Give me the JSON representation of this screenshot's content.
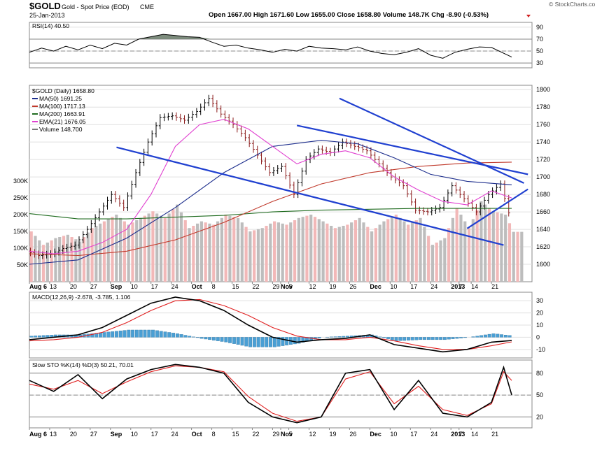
{
  "header": {
    "symbol": "$GOLD",
    "name": "Gold - Spot Price (EOD)",
    "exchange": "CME",
    "date": "25-Jan-2013",
    "quote": "Open 1667.00   High 1671.60   Low 1655.00   Close 1658.80   Volume 148.7K   Chg -8.90 (-0.53%)",
    "brand": "© StockCharts.com"
  },
  "colors": {
    "price": "#000000",
    "ma50": "#1c2d8c",
    "ma100": "#c0392b",
    "ma200": "#1f6b1f",
    "ema21": "#e040d0",
    "trendline": "#2040d0",
    "vol_up": "#bdbdbd",
    "vol_down": "#f2b8b8",
    "macd_hist": "#4a9fd4",
    "signal": "#e02020",
    "rsi_fill": "#6f7f6f"
  },
  "chart_data": [
    {
      "type": "line",
      "name": "rsi-panel",
      "label": "RSI(14) 40.50",
      "ylim": [
        22,
        98
      ],
      "yticks": [
        30,
        50,
        70,
        90
      ],
      "levels": [
        30,
        50,
        70
      ],
      "x": [
        0,
        3,
        6,
        9,
        12,
        15,
        18,
        21,
        24,
        27,
        30,
        33,
        36,
        39,
        42,
        45,
        48,
        51,
        54,
        57,
        60,
        63,
        66,
        69,
        72,
        75,
        78,
        81,
        84,
        87,
        90,
        93,
        96,
        99,
        102,
        105,
        108,
        111,
        114,
        119
      ],
      "values": [
        48,
        55,
        50,
        58,
        52,
        60,
        54,
        63,
        60,
        70,
        74,
        78,
        76,
        74,
        73,
        65,
        58,
        60,
        55,
        52,
        48,
        53,
        50,
        58,
        55,
        54,
        52,
        57,
        50,
        46,
        44,
        48,
        54,
        43,
        38,
        48,
        53,
        57,
        56,
        40
      ]
    },
    {
      "type": "candlestick",
      "name": "price-panel",
      "label": "$GOLD (Daily) 1658.80",
      "ylim": [
        1580,
        1805
      ],
      "yticks": [
        1600,
        1620,
        1640,
        1660,
        1680,
        1700,
        1720,
        1740,
        1760,
        1780,
        1800
      ],
      "price": {
        "x": [
          0,
          3,
          6,
          9,
          12,
          15,
          18,
          21,
          24,
          27,
          30,
          33,
          36,
          39,
          42,
          45,
          48,
          51,
          54,
          57,
          60,
          63,
          66,
          69,
          72,
          75,
          78,
          81,
          84,
          87,
          90,
          93,
          96,
          99,
          102,
          105,
          108,
          111,
          114,
          117,
          119
        ],
        "values": [
          1615,
          1610,
          1612,
          1618,
          1622,
          1640,
          1660,
          1680,
          1665,
          1705,
          1740,
          1768,
          1770,
          1765,
          1775,
          1790,
          1772,
          1760,
          1745,
          1725,
          1705,
          1712,
          1680,
          1720,
          1732,
          1728,
          1740,
          1735,
          1730,
          1715,
          1700,
          1690,
          1662,
          1660,
          1665,
          1690,
          1675,
          1660,
          1680,
          1692,
          1658.8
        ]
      },
      "ma50": {
        "label": "MA(50) 1691.25",
        "x": [
          0,
          12,
          24,
          36,
          48,
          60,
          72,
          81,
          90,
          99,
          108,
          119
        ],
        "values": [
          1600,
          1605,
          1630,
          1665,
          1705,
          1735,
          1742,
          1738,
          1722,
          1703,
          1695,
          1691
        ]
      },
      "ma100": {
        "label": "MA(100) 1717.13",
        "x": [
          0,
          12,
          24,
          36,
          48,
          60,
          72,
          84,
          96,
          108,
          119
        ],
        "values": [
          1612,
          1610,
          1615,
          1628,
          1648,
          1672,
          1692,
          1705,
          1712,
          1716,
          1717
        ]
      },
      "ma200": {
        "label": "MA(200) 1663.91",
        "x": [
          0,
          12,
          24,
          36,
          48,
          60,
          72,
          84,
          96,
          108,
          119
        ],
        "values": [
          1658,
          1652,
          1652,
          1654,
          1656,
          1660,
          1662,
          1663,
          1664,
          1664,
          1664
        ]
      },
      "ema21": {
        "label": "EMA(21) 1676.05",
        "x": [
          0,
          6,
          12,
          18,
          24,
          30,
          36,
          42,
          48,
          54,
          60,
          66,
          72,
          78,
          84,
          90,
          96,
          102,
          108,
          114,
          119
        ],
        "values": [
          1615,
          1612,
          1615,
          1625,
          1640,
          1680,
          1735,
          1760,
          1766,
          1755,
          1735,
          1715,
          1726,
          1730,
          1722,
          1700,
          1685,
          1672,
          1668,
          1684,
          1676
        ]
      },
      "trendlines": [
        {
          "from": [
            76.5,
            1790
          ],
          "to": [
            122,
            1693
          ]
        },
        {
          "from": [
            21.5,
            1734
          ],
          "to": [
            117,
            1622
          ]
        },
        {
          "from": [
            66,
            1759
          ],
          "to": [
            123,
            1703
          ]
        },
        {
          "from": [
            108,
            1641
          ],
          "to": [
            123,
            1686
          ]
        }
      ]
    },
    {
      "type": "bar",
      "name": "volume-overlay",
      "label": "Volume 148,700",
      "yticks": [
        50,
        100,
        150,
        200,
        250,
        300
      ],
      "ytick_labels": [
        "50K",
        "100K",
        "150K",
        "200K",
        "250K",
        "300K"
      ],
      "x": [
        0,
        3,
        6,
        9,
        12,
        15,
        18,
        21,
        24,
        27,
        30,
        33,
        36,
        39,
        42,
        45,
        48,
        51,
        54,
        57,
        60,
        63,
        66,
        69,
        72,
        75,
        78,
        81,
        84,
        87,
        90,
        93,
        96,
        99,
        102,
        105,
        108,
        111,
        114,
        117,
        119
      ],
      "values": [
        150,
        110,
        130,
        140,
        120,
        160,
        180,
        200,
        170,
        190,
        210,
        190,
        230,
        160,
        180,
        170,
        200,
        190,
        150,
        160,
        180,
        170,
        190,
        200,
        180,
        160,
        170,
        190,
        150,
        180,
        200,
        170,
        190,
        110,
        130,
        220,
        160,
        240,
        210,
        200,
        148.7
      ]
    },
    {
      "type": "line",
      "name": "macd-panel",
      "label": "MACD(12,26,9) -2.678, -3.785, 1.106",
      "ylim": [
        -17,
        37
      ],
      "yticks": [
        -10,
        0,
        10,
        20,
        30
      ],
      "macd": {
        "x": [
          0,
          6,
          12,
          18,
          24,
          30,
          36,
          42,
          48,
          54,
          60,
          66,
          72,
          78,
          84,
          90,
          96,
          102,
          108,
          114,
          119
        ],
        "values": [
          -2,
          0,
          2,
          8,
          18,
          28,
          33,
          30,
          22,
          10,
          0,
          -4,
          -2,
          -1,
          2,
          -6,
          -9,
          -12,
          -10,
          -4,
          -2.678
        ]
      },
      "signal": {
        "x": [
          0,
          6,
          12,
          18,
          24,
          30,
          36,
          42,
          48,
          54,
          60,
          66,
          72,
          78,
          84,
          90,
          96,
          102,
          108,
          114,
          119
        ],
        "values": [
          -3,
          -2,
          0,
          4,
          12,
          22,
          30,
          31,
          26,
          18,
          8,
          1,
          -2,
          -2,
          0,
          -3,
          -7,
          -10,
          -10,
          -7,
          -3.785
        ]
      },
      "histogram": {
        "x": [
          0,
          6,
          12,
          18,
          24,
          30,
          36,
          42,
          48,
          54,
          60,
          66,
          72,
          78,
          84,
          90,
          96,
          102,
          108,
          114,
          119
        ],
        "values": [
          1,
          2,
          2,
          4,
          6,
          6,
          3,
          -1,
          -4,
          -8,
          -8,
          -5,
          0,
          1,
          2,
          -3,
          -2,
          -2,
          0,
          3,
          1.106
        ]
      }
    },
    {
      "type": "line",
      "name": "stochastic-panel",
      "label": "Slow STO %K(14) %D(3) 50.21, 70.01",
      "ylim": [
        5,
        98
      ],
      "yticks": [
        20,
        50,
        80
      ],
      "levels": [
        20,
        50,
        80
      ],
      "k": {
        "x": [
          0,
          6,
          12,
          18,
          24,
          30,
          36,
          42,
          48,
          54,
          60,
          66,
          72,
          78,
          84,
          90,
          96,
          102,
          108,
          114,
          117,
          119
        ],
        "values": [
          70,
          55,
          78,
          45,
          72,
          85,
          92,
          88,
          80,
          40,
          20,
          12,
          20,
          80,
          85,
          30,
          70,
          25,
          20,
          40,
          88,
          50.21
        ]
      },
      "d": {
        "x": [
          0,
          6,
          12,
          18,
          24,
          30,
          36,
          42,
          48,
          54,
          60,
          66,
          72,
          78,
          84,
          90,
          96,
          102,
          108,
          114,
          117,
          119
        ],
        "values": [
          65,
          58,
          70,
          52,
          68,
          82,
          90,
          88,
          82,
          48,
          25,
          14,
          20,
          72,
          82,
          38,
          62,
          30,
          22,
          38,
          82,
          70.01
        ]
      }
    },
    {
      "type": "axis",
      "name": "date-axis",
      "labels": [
        "Aug 6",
        "13",
        "20",
        "27",
        "Sep",
        "10",
        "17",
        "24",
        "Oct",
        "8",
        "15",
        "22",
        "29",
        "Nov",
        "5",
        "12",
        "19",
        "26",
        "Dec",
        "10",
        "17",
        "24",
        "2013",
        "7",
        "14",
        "21"
      ],
      "x": [
        0,
        5,
        10,
        15,
        20,
        25,
        30,
        35,
        40,
        45,
        50,
        55,
        60,
        62,
        64,
        69,
        74,
        79,
        84,
        89,
        94,
        99,
        104,
        106,
        109,
        114
      ]
    }
  ]
}
